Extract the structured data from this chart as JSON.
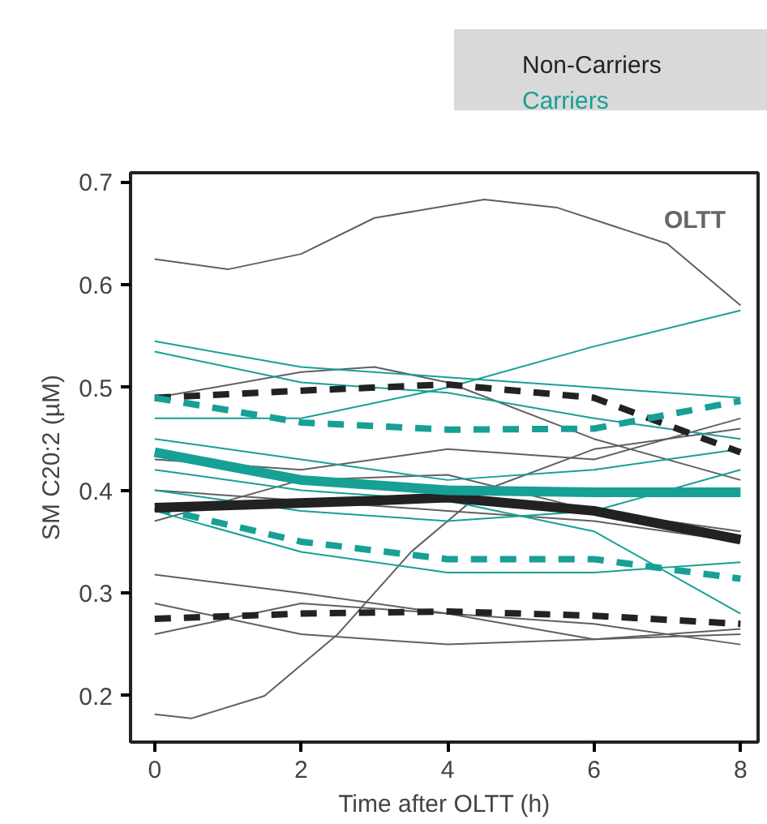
{
  "chart_data": {
    "type": "line",
    "xlabel": "Time after OLTT (h)",
    "ylabel": "SM C20:2 (µM)",
    "annotations": [
      "OLTT"
    ],
    "xlim": [
      -0.33,
      8.24
    ],
    "ylim": [
      0.155,
      0.709
    ],
    "xticks": [
      0,
      2,
      4,
      6,
      8
    ],
    "yticks": [
      0.2,
      0.3,
      0.4,
      0.5,
      0.6,
      0.7
    ],
    "grid": false,
    "legend": "top right",
    "marker": "none",
    "series": [
      {
        "color": "#606060",
        "x": [
          0,
          1,
          2,
          3,
          4.5,
          5.5,
          7,
          8
        ],
        "values": [
          0.625,
          0.615,
          0.63,
          0.665,
          0.683,
          0.675,
          0.64,
          0.58
        ]
      },
      {
        "color": "#606060",
        "x": [
          0,
          0.5,
          1.5,
          2.5,
          3.5,
          4.5,
          6,
          8
        ],
        "values": [
          0.182,
          0.178,
          0.2,
          0.26,
          0.34,
          0.4,
          0.44,
          0.46
        ]
      },
      {
        "color": "#606060",
        "x": [
          0,
          2,
          3,
          4,
          6,
          8
        ],
        "values": [
          0.49,
          0.515,
          0.52,
          0.505,
          0.45,
          0.41
        ]
      },
      {
        "color": "#606060",
        "x": [
          0,
          2,
          4,
          6,
          8
        ],
        "values": [
          0.318,
          0.3,
          0.28,
          0.27,
          0.25
        ]
      },
      {
        "color": "#606060",
        "x": [
          0,
          2,
          4,
          6,
          8
        ],
        "values": [
          0.26,
          0.29,
          0.28,
          0.255,
          0.26
        ]
      },
      {
        "color": "#606060",
        "x": [
          0,
          2,
          4,
          6,
          8
        ],
        "values": [
          0.29,
          0.26,
          0.25,
          0.255,
          0.265
        ]
      },
      {
        "color": "#606060",
        "x": [
          0,
          2,
          4,
          6,
          8
        ],
        "values": [
          0.4,
          0.39,
          0.38,
          0.37,
          0.35
        ]
      },
      {
        "color": "#606060",
        "x": [
          0,
          2,
          4,
          6,
          8
        ],
        "values": [
          0.43,
          0.42,
          0.44,
          0.43,
          0.47
        ]
      },
      {
        "color": "#606060",
        "x": [
          0,
          2,
          4,
          6,
          8
        ],
        "values": [
          0.37,
          0.41,
          0.415,
          0.38,
          0.36
        ]
      },
      {
        "color": "#17a096",
        "x": [
          0,
          2,
          4,
          6,
          8
        ],
        "values": [
          0.545,
          0.52,
          0.51,
          0.5,
          0.49
        ]
      },
      {
        "color": "#17a096",
        "x": [
          0,
          2,
          4,
          6,
          8
        ],
        "values": [
          0.535,
          0.505,
          0.495,
          0.47,
          0.45
        ]
      },
      {
        "color": "#17a096",
        "x": [
          0,
          2,
          4,
          6,
          8
        ],
        "values": [
          0.47,
          0.47,
          0.5,
          0.54,
          0.575
        ]
      },
      {
        "color": "#17a096",
        "x": [
          0,
          2,
          4,
          6,
          8
        ],
        "values": [
          0.38,
          0.34,
          0.32,
          0.32,
          0.33
        ]
      },
      {
        "color": "#17a096",
        "x": [
          0,
          2,
          4,
          6,
          8
        ],
        "values": [
          0.42,
          0.4,
          0.39,
          0.36,
          0.28
        ]
      },
      {
        "color": "#17a096",
        "x": [
          0,
          2,
          4,
          6,
          8
        ],
        "values": [
          0.4,
          0.38,
          0.37,
          0.38,
          0.42
        ]
      },
      {
        "color": "#17a096",
        "x": [
          0,
          2,
          4,
          6,
          8
        ],
        "values": [
          0.45,
          0.43,
          0.41,
          0.42,
          0.44
        ]
      },
      {
        "color": "#222222",
        "line_style": "dashed",
        "x": [
          0,
          2,
          4,
          6,
          8
        ],
        "values": [
          0.49,
          0.497,
          0.503,
          0.49,
          0.437
        ]
      },
      {
        "color": "#17a096",
        "line_style": "dashed",
        "x": [
          0,
          2,
          4,
          6,
          8
        ],
        "values": [
          0.49,
          0.466,
          0.459,
          0.46,
          0.487
        ]
      },
      {
        "color": "#222222",
        "line_style": "dashed",
        "x": [
          0,
          2,
          4,
          6,
          8
        ],
        "values": [
          0.275,
          0.28,
          0.282,
          0.278,
          0.27
        ]
      },
      {
        "color": "#17a096",
        "line_style": "dashed",
        "x": [
          0,
          2,
          4,
          6,
          8
        ],
        "values": [
          0.383,
          0.35,
          0.333,
          0.333,
          0.314
        ]
      },
      {
        "name": "Non-Carriers",
        "color": "#222222",
        "x": [
          0,
          3,
          4,
          6,
          8
        ],
        "values": [
          0.383,
          0.39,
          0.393,
          0.38,
          0.352
        ]
      },
      {
        "name": "Carriers",
        "color": "#17a096",
        "x": [
          0,
          2,
          4,
          6,
          8
        ],
        "values": [
          0.437,
          0.41,
          0.4,
          0.398,
          0.398
        ]
      }
    ]
  }
}
